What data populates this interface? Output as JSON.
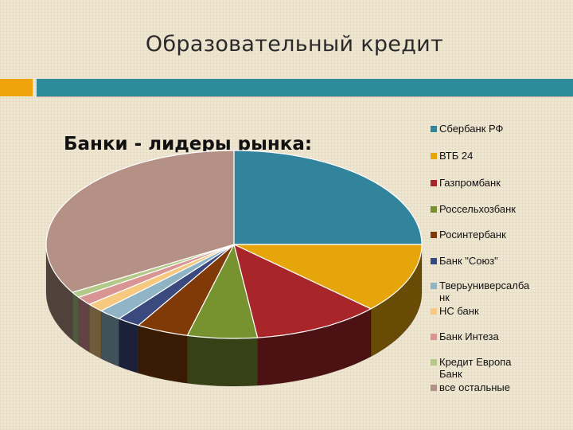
{
  "slide": {
    "title": "Образовательный кредит",
    "accent_colors": {
      "left": "#f0a30a",
      "right": "#2e8b9a"
    }
  },
  "chart_data": {
    "type": "pie",
    "title": "Банки - лидеры рынка:",
    "legend_position": "right",
    "three_d": true,
    "unit": "percent (estimated)",
    "slices": [
      {
        "name": "Сбербанк РФ",
        "value": 25.0,
        "color": "#31849b"
      },
      {
        "name": "ВТБ 24",
        "value": 12.0,
        "color": "#e6a60b"
      },
      {
        "name": "Газпромбанк",
        "value": 11.0,
        "color": "#a8252a"
      },
      {
        "name": "Россельхозбанк",
        "value": 6.0,
        "color": "#77932f"
      },
      {
        "name": "Росинтербанк",
        "value": 4.5,
        "color": "#7f3a07"
      },
      {
        "name": "Банк \"Союз\"",
        "value": 2.0,
        "color": "#3b4a7e"
      },
      {
        "name": "Тверьуниверсалбанк",
        "value": 2.0,
        "color": "#8fb4c6"
      },
      {
        "name": "НС банк",
        "value": 1.5,
        "color": "#f6c97f"
      },
      {
        "name": "Банк Интеза",
        "value": 1.5,
        "color": "#d99594"
      },
      {
        "name": "Кредит Европа Банк",
        "value": 1.0,
        "color": "#b2c98a"
      },
      {
        "name": "все остальные",
        "value": 33.5,
        "color": "#b49184"
      }
    ]
  }
}
